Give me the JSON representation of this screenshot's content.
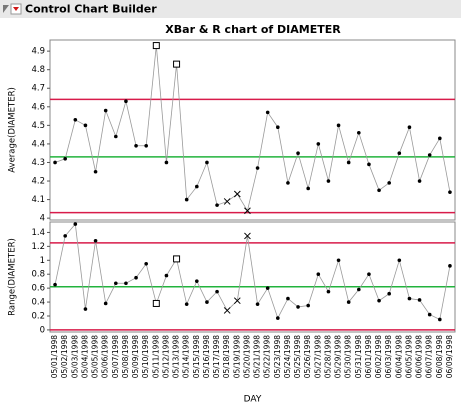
{
  "header": "Control Chart Builder",
  "chart_data": [
    {
      "type": "control",
      "title": "XBar & R chart of DIAMETER",
      "ylabel": "Average(DIAMETER)",
      "ylim": [
        3.99,
        4.96
      ],
      "yticks": [
        4.0,
        4.1,
        4.2,
        4.3,
        4.4,
        4.5,
        4.6,
        4.7,
        4.8,
        4.9
      ],
      "ucl": 4.64,
      "center": 4.33,
      "lcl": 4.03,
      "limit_color": "#d81b4a",
      "center_color": "#22b33c",
      "line_color": "#9a9a9a",
      "values": [
        4.3,
        4.32,
        4.53,
        4.5,
        4.25,
        4.58,
        4.44,
        4.63,
        4.39,
        4.39,
        4.93,
        4.3,
        4.83,
        4.1,
        4.17,
        4.3,
        4.07,
        4.09,
        4.13,
        4.04,
        4.27,
        4.57,
        4.49,
        4.19,
        4.35,
        4.16,
        4.4,
        4.2,
        4.5,
        4.3,
        4.46,
        4.29,
        4.15,
        4.19,
        4.35,
        4.49,
        4.2,
        4.34,
        4.43,
        4.14
      ],
      "markers": [
        "dot",
        "dot",
        "dot",
        "dot",
        "dot",
        "dot",
        "dot",
        "dot",
        "dot",
        "dot",
        "square",
        "dot",
        "square",
        "dot",
        "dot",
        "dot",
        "dot",
        "x",
        "x",
        "x",
        "dot",
        "dot",
        "dot",
        "dot",
        "dot",
        "dot",
        "dot",
        "dot",
        "dot",
        "dot",
        "dot",
        "dot",
        "dot",
        "dot",
        "dot",
        "dot",
        "dot",
        "dot",
        "dot",
        "dot"
      ]
    },
    {
      "type": "control",
      "ylabel": "Range(DIAMETER)",
      "xlabel": "DAY",
      "ylim": [
        -0.03,
        1.55
      ],
      "yticks": [
        0.0,
        0.2,
        0.4,
        0.6,
        0.8,
        1.0,
        1.2,
        1.4
      ],
      "ucl": 1.25,
      "center": 0.62,
      "lcl": 0.0,
      "limit_color": "#d81b4a",
      "center_color": "#22b33c",
      "line_color": "#9a9a9a",
      "categories": [
        "05/01/1998",
        "05/02/1998",
        "05/03/1998",
        "05/04/1998",
        "05/05/1998",
        "05/06/1998",
        "05/07/1998",
        "05/08/1998",
        "05/09/1998",
        "05/10/1998",
        "05/11/1998",
        "05/12/1998",
        "05/13/1998",
        "05/14/1998",
        "05/15/1998",
        "05/16/1998",
        "05/17/1998",
        "05/18/1998",
        "05/19/1998",
        "05/20/1998",
        "05/21/1998",
        "05/22/1998",
        "05/23/1998",
        "05/24/1998",
        "05/25/1998",
        "05/26/1998",
        "05/27/1998",
        "05/28/1998",
        "05/29/1998",
        "05/30/1998",
        "05/31/1998",
        "06/01/1998",
        "06/02/1998",
        "06/03/1998",
        "06/04/1998",
        "06/05/1998",
        "06/06/1998",
        "06/07/1998",
        "06/08/1998",
        "06/09/1998"
      ],
      "values": [
        0.65,
        1.35,
        1.52,
        0.3,
        1.28,
        0.38,
        0.67,
        0.67,
        0.75,
        0.95,
        0.38,
        0.78,
        1.02,
        0.37,
        0.7,
        0.4,
        0.55,
        0.28,
        0.42,
        1.35,
        0.37,
        0.6,
        0.17,
        0.45,
        0.33,
        0.35,
        0.8,
        0.55,
        1.0,
        0.4,
        0.58,
        0.8,
        0.42,
        0.52,
        1.0,
        0.45,
        0.43,
        0.22,
        0.15,
        0.92
      ],
      "markers": [
        "dot",
        "dot",
        "dot",
        "dot",
        "dot",
        "dot",
        "dot",
        "dot",
        "dot",
        "dot",
        "square",
        "dot",
        "square",
        "dot",
        "dot",
        "dot",
        "dot",
        "x",
        "x",
        "x",
        "dot",
        "dot",
        "dot",
        "dot",
        "dot",
        "dot",
        "dot",
        "dot",
        "dot",
        "dot",
        "dot",
        "dot",
        "dot",
        "dot",
        "dot",
        "dot",
        "dot",
        "dot",
        "dot",
        "dot"
      ]
    }
  ]
}
